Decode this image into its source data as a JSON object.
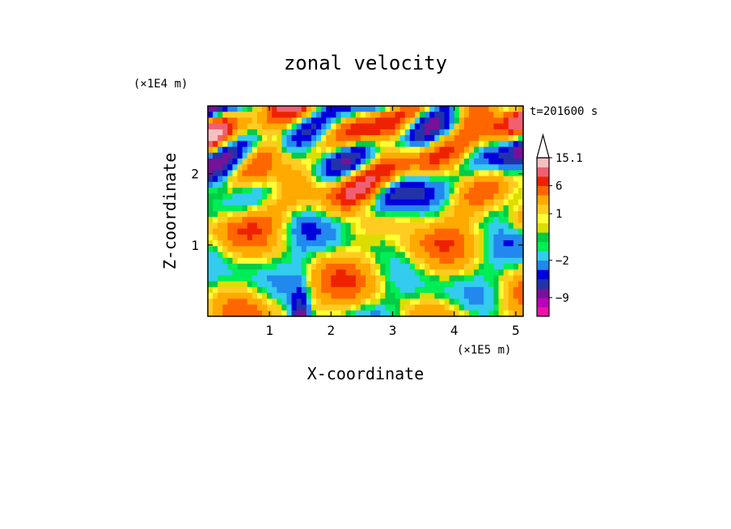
{
  "chart_data": {
    "type": "heatmap",
    "title": "zonal velocity",
    "xlabel": "X-coordinate",
    "ylabel": "Z-coordinate",
    "x_scale_label": "(×1E5 m)",
    "y_scale_label": "(×1E4 m)",
    "time_label": "t=201600 s",
    "xlim": [
      0,
      5.12
    ],
    "ylim": [
      0,
      2.95
    ],
    "x_ticks": [
      1,
      2,
      3,
      4,
      5
    ],
    "x_tick_labels": [
      "1",
      "2",
      "3",
      "4",
      "5"
    ],
    "y_ticks": [
      1,
      2
    ],
    "y_tick_labels": [
      "1",
      "2"
    ],
    "colorbar": {
      "levels": [
        -15.1,
        -12,
        -9,
        -7,
        -5,
        -3.5,
        -2,
        -1,
        -0.5,
        0,
        0.5,
        1,
        2,
        4,
        6,
        8,
        11,
        15.1
      ],
      "colors": [
        "#ee11aa",
        "#bb00bb",
        "#771199",
        "#2233aa",
        "#0000dd",
        "#2288ee",
        "#33ccee",
        "#00ee55",
        "#00cc44",
        "#dddd00",
        "#ffff33",
        "#ffcc22",
        "#ffaa00",
        "#ff6600",
        "#ee2200",
        "#f06070",
        "#f8c0c0"
      ],
      "over_color": "#ffffff",
      "tick_values": [
        15.1,
        6,
        1,
        -2,
        -9
      ],
      "tick_labels": [
        "15.1",
        "6",
        "1",
        "−2",
        "−9"
      ]
    },
    "field": {
      "nx": 64,
      "nz": 36,
      "description_of_features": "alternating positive (orange/red) and negative (blue) wave bands aloft, mostly weak (yellow/green) near surface"
    }
  }
}
